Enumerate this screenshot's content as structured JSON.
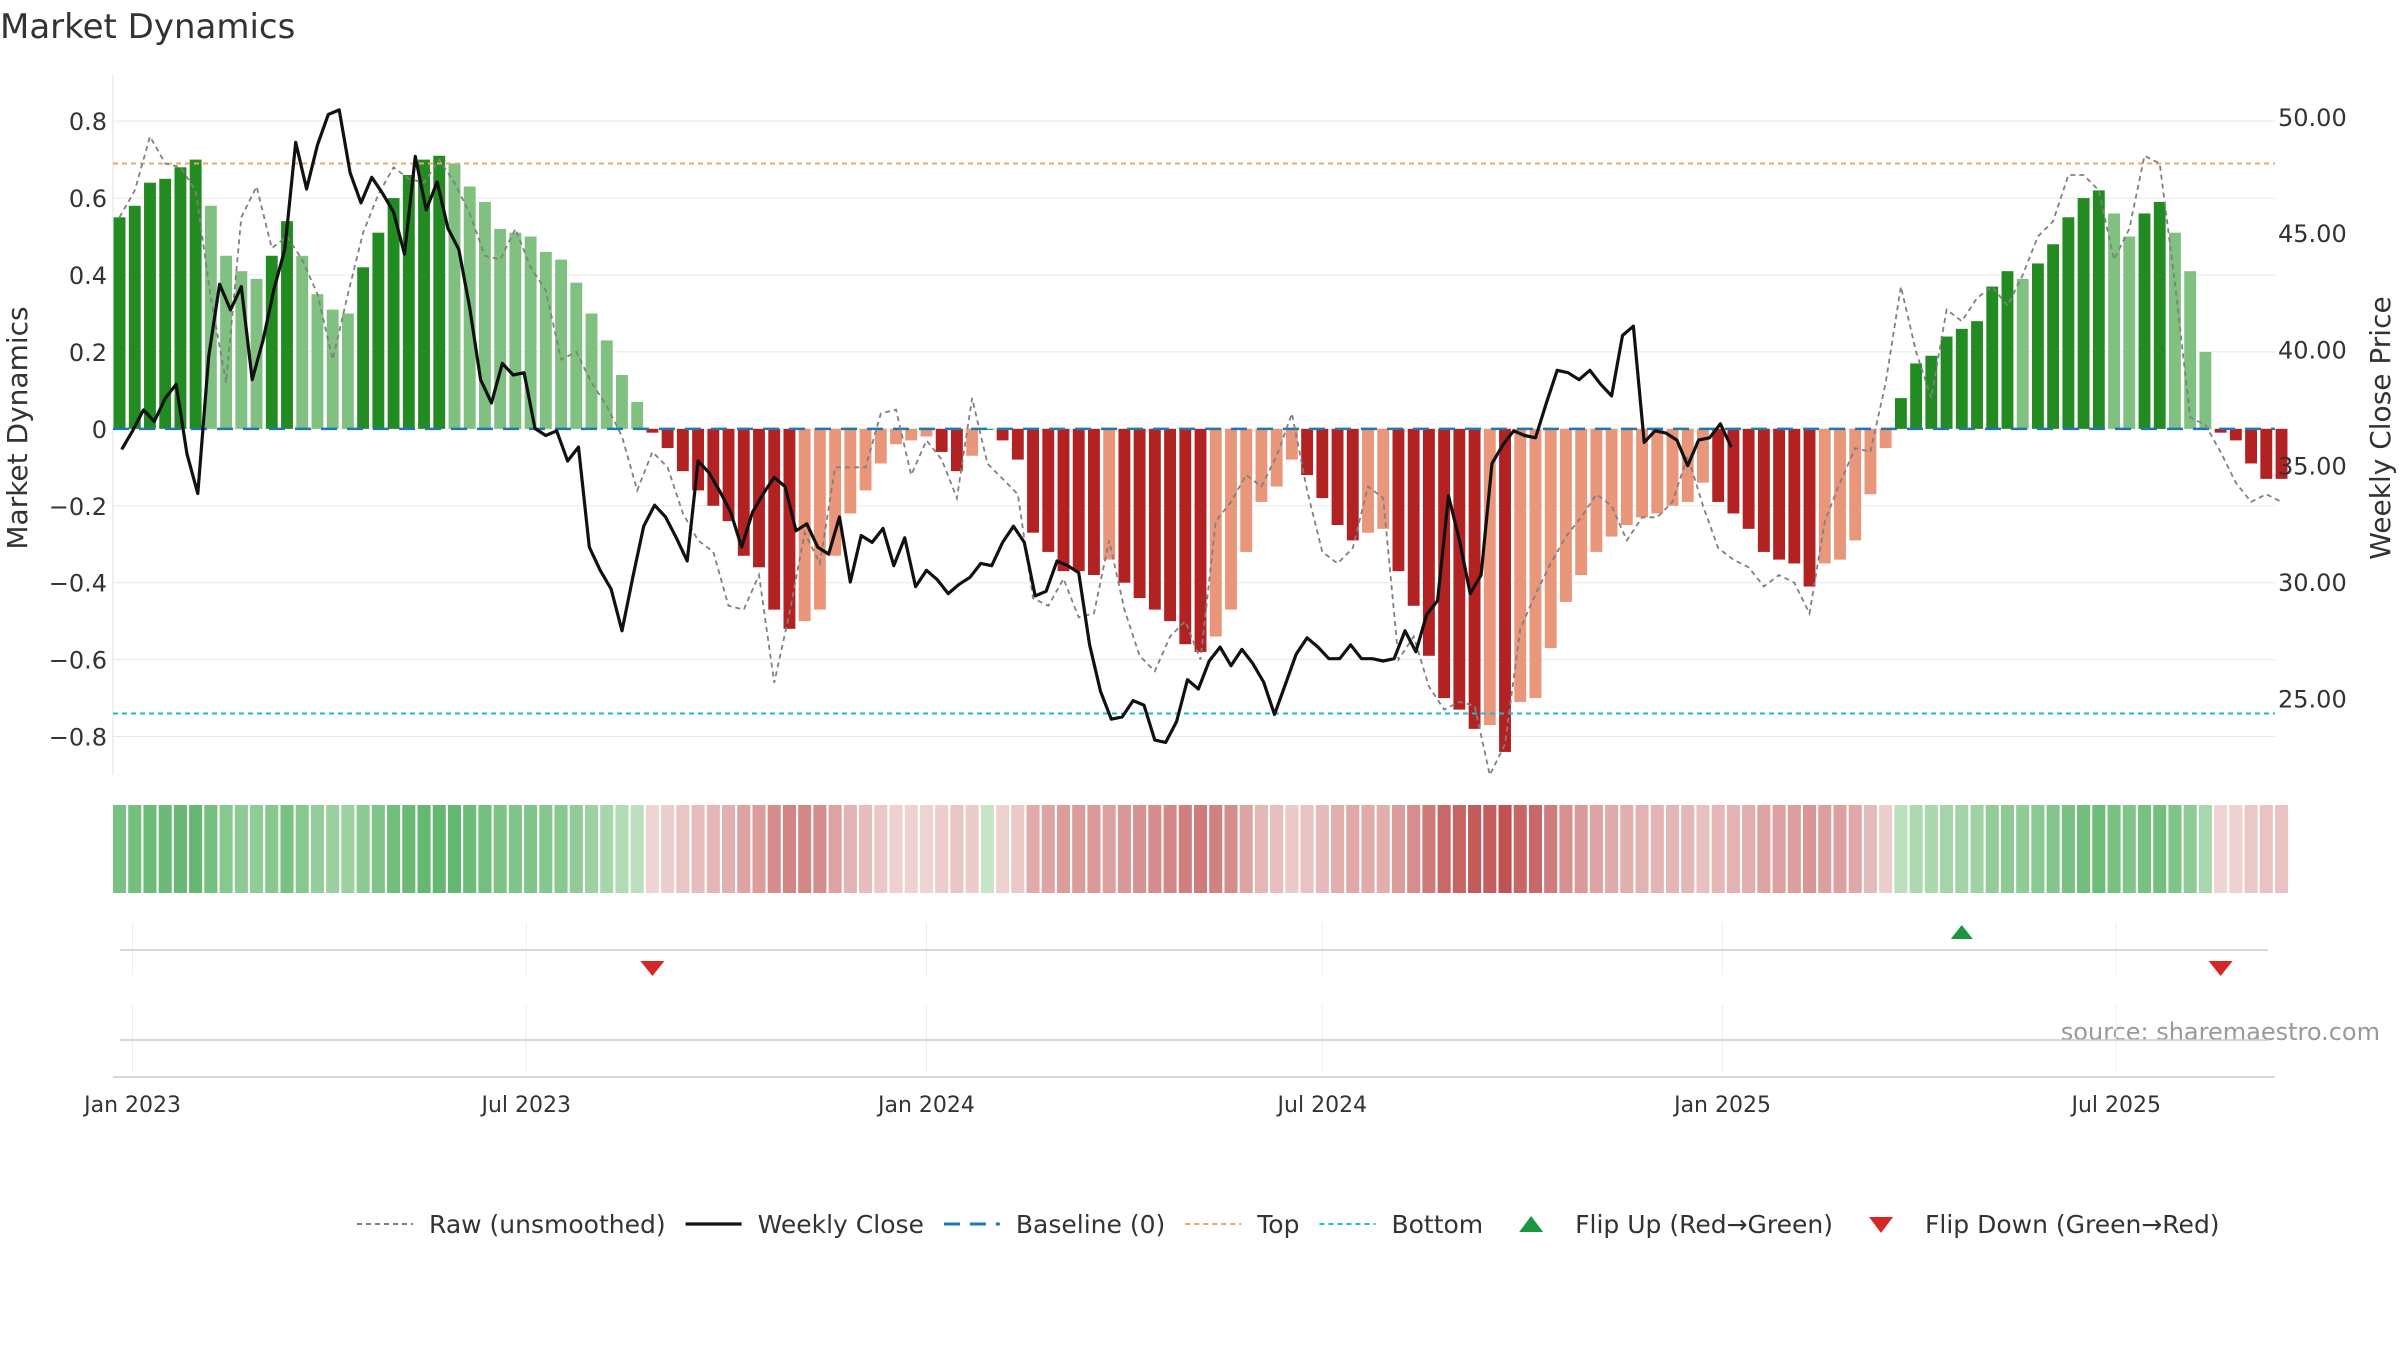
{
  "colors": {
    "green_strong": "#228b22",
    "green_light": "#80c080",
    "red_strong": "#b22222",
    "red_light": "#e9967a",
    "raw_line": "#808080",
    "close_line": "#111111",
    "baseline": "#1f77b4",
    "top": "#f4a460",
    "bottom": "#17becf",
    "flip_up": "#1a9641",
    "flip_down": "#d62728",
    "strip_green_dark": "#4fae5e",
    "strip_green_light": "#c6e5c6",
    "strip_red_dark": "#c05050",
    "strip_red_light": "#f0d6d6",
    "grid": "#e8e8e8",
    "text": "#333333"
  },
  "chart_data": {
    "type": "bar+line",
    "title": "Market Dynamics",
    "ylabel_left": "Market Dynamics",
    "ylabel_right": "Weekly Close Price",
    "source": "source: sharemaestro.com",
    "left_ticks": [
      "0.8",
      "0.6",
      "0.4",
      "0.2",
      "0",
      "−0.2",
      "−0.4",
      "−0.6",
      "−0.8"
    ],
    "left_tick_values": [
      0.8,
      0.6,
      0.4,
      0.2,
      0,
      -0.2,
      -0.4,
      -0.6,
      -0.8
    ],
    "right_ticks": [
      "50.00",
      "45.00",
      "40.00",
      "35.00",
      "30.00",
      "25.00"
    ],
    "right_tick_values": [
      50,
      45,
      40,
      35,
      30,
      25
    ],
    "ylim_left": [
      -0.9,
      0.92
    ],
    "ylim_right": [
      21.7,
      51.8
    ],
    "top_level": 0.69,
    "bottom_level": -0.74,
    "baseline": 0,
    "x_start": "2022-12-23",
    "x_end": "2025-09-12",
    "x_ticks": [
      {
        "date": "2023-01-01",
        "label": "Jan 2023"
      },
      {
        "date": "2023-07-01",
        "label": "Jul 2023"
      },
      {
        "date": "2024-01-01",
        "label": "Jan 2024"
      },
      {
        "date": "2024-07-01",
        "label": "Jul 2024"
      },
      {
        "date": "2025-01-01",
        "label": "Jan 2025"
      },
      {
        "date": "2025-07-01",
        "label": "Jul 2025"
      }
    ],
    "weekly": {
      "start": "2022-12-26",
      "interval_days": 7,
      "histogram": [
        0.55,
        0.58,
        0.64,
        0.65,
        0.68,
        0.7,
        0.58,
        0.45,
        0.41,
        0.39,
        0.45,
        0.54,
        0.45,
        0.35,
        0.31,
        0.3,
        0.42,
        0.51,
        0.6,
        0.66,
        0.7,
        0.71,
        0.69,
        0.63,
        0.59,
        0.52,
        0.51,
        0.5,
        0.46,
        0.44,
        0.38,
        0.3,
        0.23,
        0.14,
        0.07,
        -0.01,
        -0.05,
        -0.11,
        -0.16,
        -0.2,
        -0.24,
        -0.33,
        -0.36,
        -0.47,
        -0.52,
        -0.5,
        -0.47,
        -0.33,
        -0.22,
        -0.16,
        -0.09,
        -0.04,
        -0.03,
        -0.02,
        -0.06,
        -0.11,
        -0.07,
        0.0,
        -0.03,
        -0.08,
        -0.27,
        -0.32,
        -0.37,
        -0.37,
        -0.38,
        -0.34,
        -0.4,
        -0.44,
        -0.47,
        -0.5,
        -0.56,
        -0.58,
        -0.54,
        -0.47,
        -0.32,
        -0.19,
        -0.15,
        -0.08,
        -0.12,
        -0.18,
        -0.25,
        -0.29,
        -0.27,
        -0.26,
        -0.37,
        -0.46,
        -0.59,
        -0.7,
        -0.73,
        -0.78,
        -0.77,
        -0.84,
        -0.71,
        -0.7,
        -0.57,
        -0.45,
        -0.38,
        -0.32,
        -0.28,
        -0.25,
        -0.23,
        -0.22,
        -0.2,
        -0.19,
        -0.14,
        -0.19,
        -0.22,
        -0.26,
        -0.32,
        -0.34,
        -0.35,
        -0.41,
        -0.35,
        -0.34,
        -0.29,
        -0.17,
        -0.05,
        0.08,
        0.17,
        0.19,
        0.24,
        0.26,
        0.28,
        0.37,
        0.41,
        0.39,
        0.43,
        0.48,
        0.55,
        0.6,
        0.62,
        0.56,
        0.5,
        0.56,
        0.59,
        0.51,
        0.41,
        0.2,
        -0.01,
        -0.03,
        -0.09,
        -0.13,
        -0.13
      ],
      "raw": [
        0.55,
        0.62,
        0.76,
        0.69,
        0.68,
        0.62,
        0.34,
        0.12,
        0.55,
        0.63,
        0.47,
        0.5,
        0.44,
        0.35,
        0.18,
        0.35,
        0.51,
        0.61,
        0.68,
        0.65,
        0.64,
        0.7,
        0.64,
        0.56,
        0.45,
        0.44,
        0.52,
        0.42,
        0.36,
        0.18,
        0.2,
        0.12,
        0.06,
        -0.02,
        -0.16,
        -0.06,
        -0.1,
        -0.22,
        -0.29,
        -0.32,
        -0.46,
        -0.47,
        -0.38,
        -0.66,
        -0.48,
        -0.27,
        -0.35,
        -0.1,
        -0.1,
        -0.1,
        0.04,
        0.05,
        -0.12,
        -0.03,
        -0.08,
        -0.18,
        0.08,
        -0.09,
        -0.13,
        -0.17,
        -0.44,
        -0.46,
        -0.39,
        -0.49,
        -0.48,
        -0.29,
        -0.47,
        -0.59,
        -0.63,
        -0.54,
        -0.5,
        -0.6,
        -0.24,
        -0.19,
        -0.12,
        -0.15,
        -0.07,
        0.04,
        -0.16,
        -0.32,
        -0.35,
        -0.31,
        -0.15,
        -0.18,
        -0.6,
        -0.54,
        -0.67,
        -0.73,
        -0.71,
        -0.72,
        -0.9,
        -0.82,
        -0.52,
        -0.43,
        -0.35,
        -0.28,
        -0.23,
        -0.17,
        -0.2,
        -0.29,
        -0.23,
        -0.23,
        -0.19,
        -0.07,
        -0.2,
        -0.31,
        -0.34,
        -0.36,
        -0.41,
        -0.38,
        -0.4,
        -0.48,
        -0.24,
        -0.14,
        -0.05,
        -0.06,
        0.12,
        0.37,
        0.2,
        0.08,
        0.31,
        0.28,
        0.34,
        0.37,
        0.32,
        0.4,
        0.5,
        0.54,
        0.66,
        0.66,
        0.62,
        0.44,
        0.52,
        0.71,
        0.69,
        0.38,
        0.03,
        0.01,
        -0.06,
        -0.14,
        -0.19,
        -0.17,
        -0.19
      ]
    },
    "daily_close": {
      "start": "2022-12-27",
      "interval_days": 5,
      "values": [
        35.7,
        36.5,
        37.4,
        36.9,
        37.9,
        38.5,
        35.5,
        33.8,
        39.7,
        42.8,
        41.7,
        42.7,
        38.7,
        40.4,
        42.6,
        44.3,
        48.9,
        46.9,
        48.8,
        50.1,
        50.3,
        47.6,
        46.3,
        47.4,
        46.7,
        45.9,
        44.1,
        48.3,
        46.0,
        47.2,
        45.2,
        44.3,
        41.8,
        38.7,
        37.7,
        39.4,
        38.9,
        39.0,
        36.6,
        36.3,
        36.5,
        35.2,
        35.8,
        31.5,
        30.5,
        29.7,
        27.9,
        30.2,
        32.4,
        33.3,
        32.8,
        31.9,
        30.9,
        35.2,
        34.7,
        33.9,
        33.0,
        31.5,
        33.0,
        33.8,
        34.5,
        34.1,
        32.2,
        32.5,
        31.5,
        31.2,
        32.8,
        30.0,
        32.0,
        31.7,
        32.3,
        30.7,
        31.9,
        29.8,
        30.5,
        30.1,
        29.5,
        29.9,
        30.2,
        30.8,
        30.7,
        31.7,
        32.4,
        31.7,
        29.4,
        29.6,
        30.9,
        30.7,
        30.4,
        27.3,
        25.3,
        24.1,
        24.2,
        24.9,
        24.7,
        23.2,
        23.1,
        24.0,
        25.8,
        25.4,
        26.6,
        27.2,
        26.4,
        27.1,
        26.5,
        25.7,
        24.3,
        25.6,
        26.9,
        27.6,
        27.2,
        26.7,
        26.7,
        27.3,
        26.7,
        26.7,
        26.6,
        26.7,
        27.9,
        27.0,
        28.6,
        29.2,
        33.7,
        31.8,
        29.5,
        30.3,
        35.1,
        35.9,
        36.5,
        36.3,
        36.2,
        37.7,
        39.1,
        39.0,
        38.7,
        39.1,
        38.5,
        38.0,
        40.6,
        41.0,
        36.0,
        36.5,
        36.4,
        36.1,
        35.0,
        36.1,
        36.2,
        36.8,
        35.8
      ]
    },
    "flips": [
      {
        "type": "down",
        "date": "2023-08-28"
      },
      {
        "type": "up",
        "date": "2025-04-21"
      },
      {
        "type": "down",
        "date": "2025-08-18"
      }
    ],
    "legend": [
      {
        "key": "raw",
        "label": "Raw (unsmoothed)"
      },
      {
        "key": "close",
        "label": "Weekly Close"
      },
      {
        "key": "baseline",
        "label": "Baseline (0)"
      },
      {
        "key": "top",
        "label": "Top"
      },
      {
        "key": "bottom",
        "label": "Bottom"
      },
      {
        "key": "flip_up",
        "label": "Flip Up (Red→Green)"
      },
      {
        "key": "flip_down",
        "label": "Flip Down (Green→Red)"
      }
    ]
  }
}
